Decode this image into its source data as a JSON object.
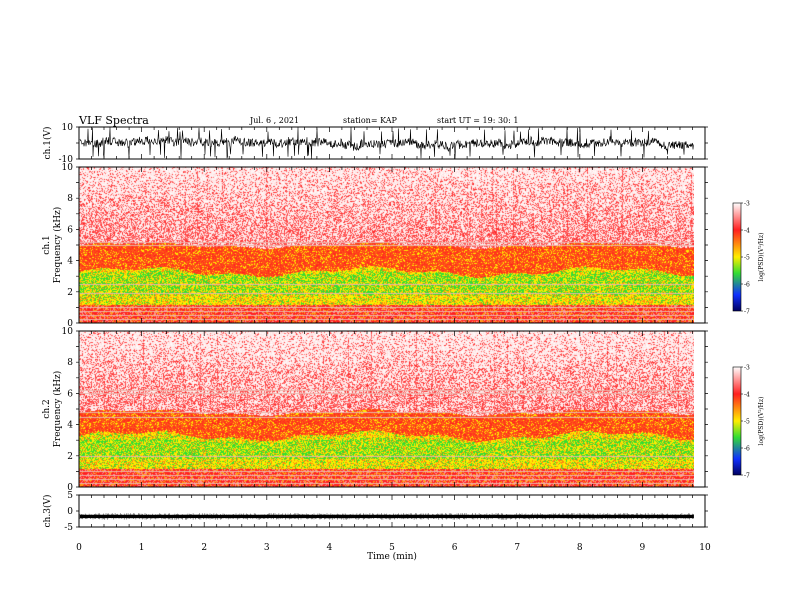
{
  "header": {
    "title": "VLF Spectra",
    "date": "Jul. 6 , 2021",
    "station": "station= KAP",
    "start_ut": "start UT = 19: 30: 1"
  },
  "colors": {
    "white": "#ffffff",
    "red": "#ff2020",
    "yellow": "#ffee00",
    "green": "#33dd33",
    "blue": "#1030ff",
    "navy": "#000060",
    "trace": "#000000"
  },
  "chart_data": [
    {
      "type": "line",
      "panel": "ch1-waveform",
      "ylabel": "ch.1(V)",
      "ylim": [
        -10,
        10
      ],
      "y_ticks": [
        "10",
        "-10"
      ],
      "xlim": [
        0,
        10
      ],
      "description_values": {
        "typical_amplitude_V": [
          -6,
          6
        ]
      }
    },
    {
      "type": "heatmap",
      "panel": "ch1-spectrogram",
      "ylabel": "ch.1\nFrequency (kHz)",
      "ylim": [
        0,
        10
      ],
      "y_ticks": [
        "0",
        "2",
        "4",
        "6",
        "8",
        "10"
      ],
      "xlim": [
        0,
        10
      ],
      "colorbar": {
        "label": "log(PSD)(V²/Hz)",
        "range": [
          -7,
          -3
        ],
        "ticks": [
          "-3",
          "-4",
          "-5",
          "-6",
          "-7"
        ]
      },
      "bands_khz": {
        "red_top": 5,
        "yellow_top": 3.3,
        "green": [
          1.8,
          3.2
        ],
        "low_red": [
          0,
          1.2
        ]
      },
      "line_frequencies_khz": [
        0.25,
        0.5,
        0.75,
        1.0,
        1.9,
        2.5,
        5.0,
        5.2
      ]
    },
    {
      "type": "heatmap",
      "panel": "ch2-spectrogram",
      "ylabel": "ch.2\nFrequency (kHz)",
      "ylim": [
        0,
        10
      ],
      "y_ticks": [
        "0",
        "2",
        "4",
        "6",
        "8",
        "10"
      ],
      "xlim": [
        0,
        10
      ],
      "colorbar": {
        "label": "log(PSD)(V²/Hz)",
        "range": [
          -7,
          -3
        ],
        "ticks": [
          "-3",
          "-4",
          "-5",
          "-6",
          "-7"
        ]
      },
      "bands_khz": {
        "red_top": 4.8,
        "yellow_top": 3.3,
        "green": [
          1.8,
          3.0
        ],
        "low_red": [
          0,
          1.2
        ]
      },
      "line_frequencies_khz": [
        0.25,
        0.5,
        0.75,
        1.0,
        2.0,
        4.5,
        4.8,
        6.0,
        6.2
      ]
    },
    {
      "type": "line",
      "panel": "ch3-waveform",
      "ylabel": "ch.3(V)",
      "ylim": [
        -5,
        5
      ],
      "y_ticks": [
        "5",
        "0",
        "-5"
      ],
      "xlim": [
        0,
        10
      ],
      "description_values": {
        "band_V": [
          -2.2,
          -1.2
        ]
      }
    }
  ],
  "x_axis": {
    "label": "Time (min)",
    "ticks": [
      "0",
      "1",
      "2",
      "3",
      "4",
      "5",
      "6",
      "7",
      "8",
      "9",
      "10"
    ],
    "data_end_min": 9.82
  }
}
